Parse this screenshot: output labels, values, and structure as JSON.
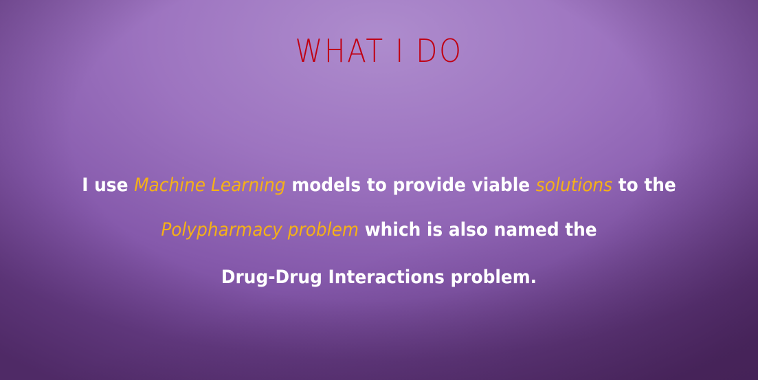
{
  "heading": "WHAT I DO",
  "description": {
    "line1": {
      "part1": "I use",
      "highlight1": "Machine Learning",
      "part2": "models to provide viable",
      "highlight2": "solutions",
      "part3": "to the"
    },
    "line2": {
      "highlight1": "Polypharmacy problem",
      "part1": "which is also named the"
    },
    "line3": {
      "part1": "Drug-Drug Interactions problem."
    }
  },
  "colors": {
    "heading": "#c00012",
    "highlight": "#f5b117",
    "text": "#ffffff",
    "background": "#9d74c0"
  }
}
